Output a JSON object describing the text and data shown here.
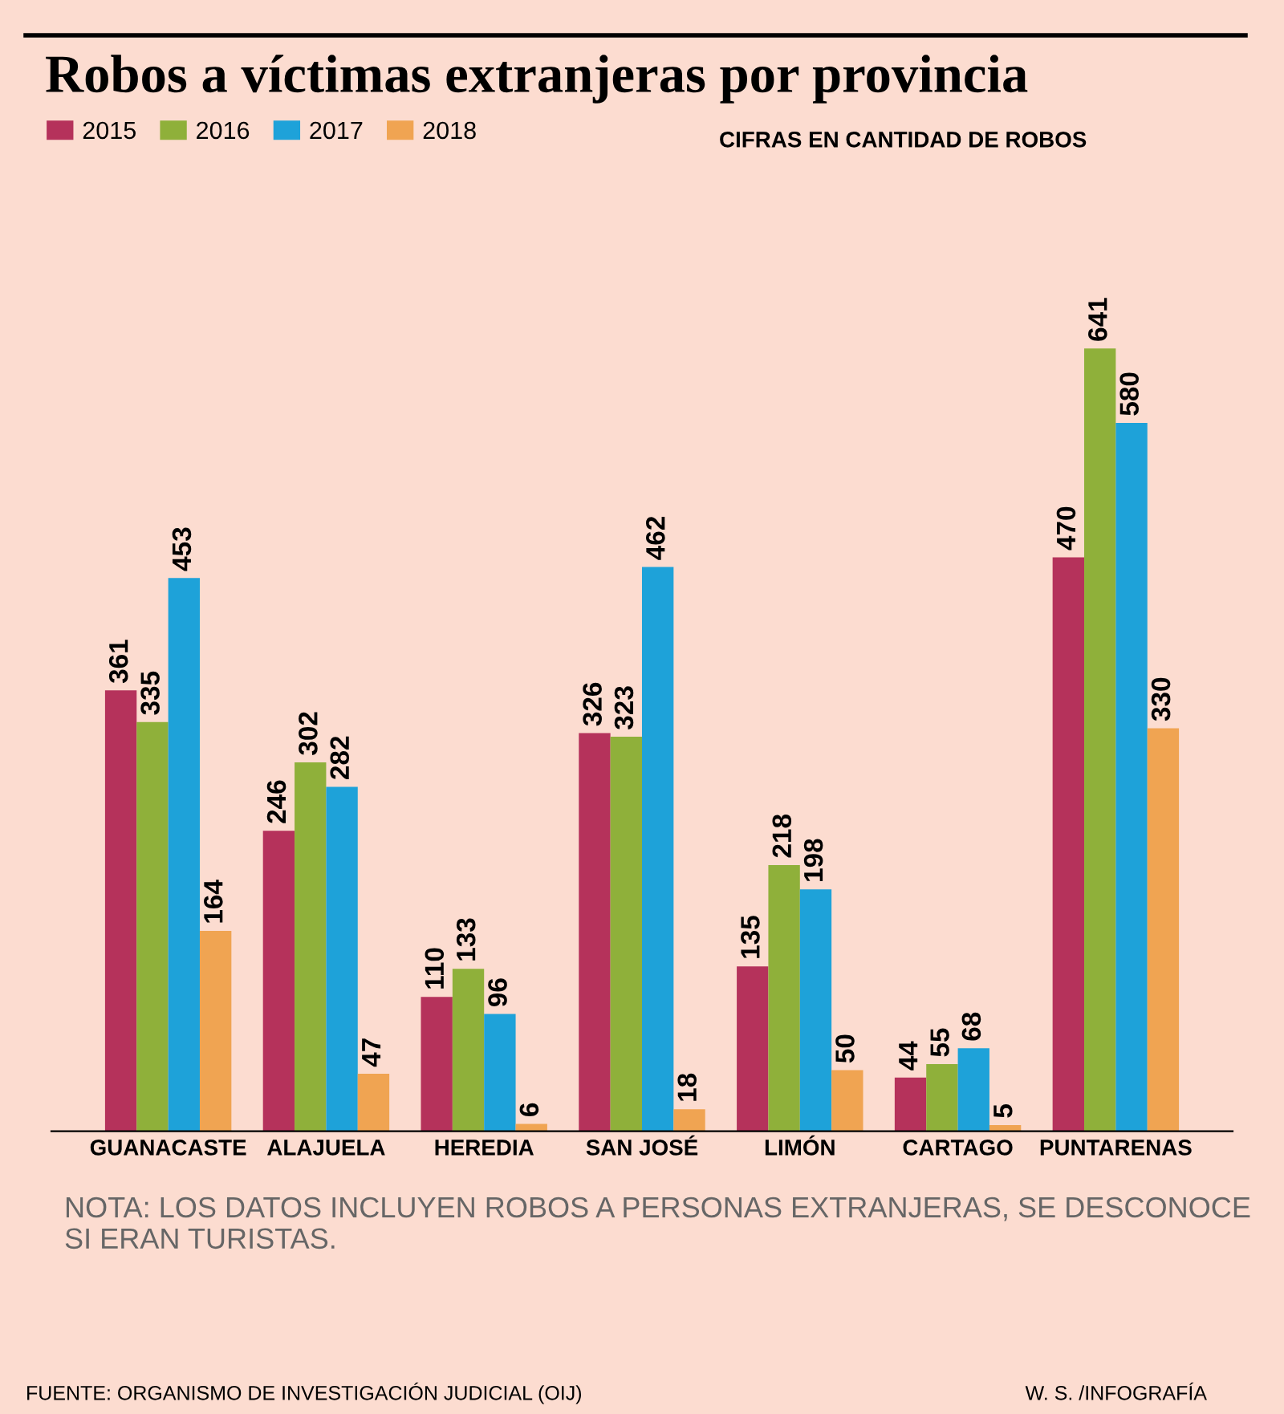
{
  "chart_data": {
    "type": "bar",
    "title": "Robos a víctimas extranjeras por provincia",
    "subtitle": "CIFRAS EN CANTIDAD DE ROBOS",
    "categories": [
      "GUANACASTE",
      "ALAJUELA",
      "HEREDIA",
      "SAN JOSÉ",
      "LIMÓN",
      "CARTAGO",
      "PUNTARENAS"
    ],
    "series": [
      {
        "name": "2015",
        "color": "#b5325b",
        "values": [
          361,
          246,
          110,
          326,
          135,
          44,
          470
        ]
      },
      {
        "name": "2016",
        "color": "#8fb03a",
        "values": [
          335,
          302,
          133,
          323,
          218,
          55,
          641
        ]
      },
      {
        "name": "2017",
        "color": "#1ea2d9",
        "values": [
          453,
          282,
          96,
          462,
          198,
          68,
          580
        ]
      },
      {
        "name": "2018",
        "color": "#f0a452",
        "values": [
          164,
          47,
          6,
          18,
          50,
          5,
          330
        ]
      }
    ],
    "data_labels": true,
    "legend": "top left",
    "grid": false,
    "annotations": [
      "NOTA: LOS DATOS INCLUYEN ROBOS A PERSONAS EXTRANJERAS, SE DESCONOCE SI ERAN TURISTAS.",
      "FUENTE: ORGANISMO DE INVESTIGACIÓN JUDICIAL (OIJ)",
      "W. S. /INFOGRAFÍA"
    ]
  }
}
